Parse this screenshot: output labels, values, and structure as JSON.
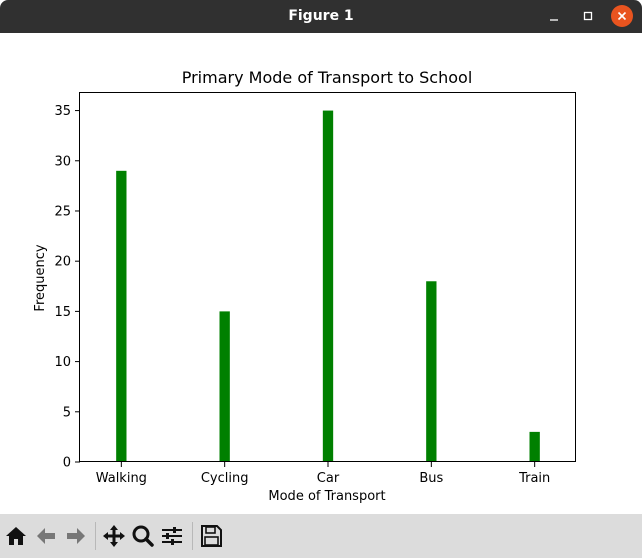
{
  "window": {
    "title": "Figure 1"
  },
  "toolbar": {
    "buttons": [
      {
        "name": "home",
        "icon": "home-icon"
      },
      {
        "name": "back",
        "icon": "arrow-left-icon"
      },
      {
        "name": "forward",
        "icon": "arrow-right-icon"
      },
      {
        "name": "pan",
        "icon": "move-icon"
      },
      {
        "name": "zoom",
        "icon": "magnifier-icon"
      },
      {
        "name": "configure-subplots",
        "icon": "sliders-icon"
      },
      {
        "name": "save",
        "icon": "floppy-disk-icon"
      }
    ]
  },
  "colors": {
    "titlebar": "#303030",
    "close_button": "#e9541f",
    "bar": "#008000",
    "toolbar": "#dcdcdc"
  },
  "chart_data": {
    "type": "bar",
    "title": "Primary Mode of Transport to School",
    "xlabel": "Mode of Transport",
    "ylabel": "Frequency",
    "categories": [
      "Walking",
      "Cycling",
      "Car",
      "Bus",
      "Train"
    ],
    "values": [
      29,
      15,
      35,
      18,
      3
    ],
    "ylim": [
      0,
      36.75
    ],
    "yticks": [
      0,
      5,
      10,
      15,
      20,
      25,
      30,
      35
    ],
    "ytick_labels": [
      "0",
      "5",
      "10",
      "15",
      "20",
      "25",
      "30",
      "35"
    ],
    "grid": false,
    "legend": "none"
  }
}
